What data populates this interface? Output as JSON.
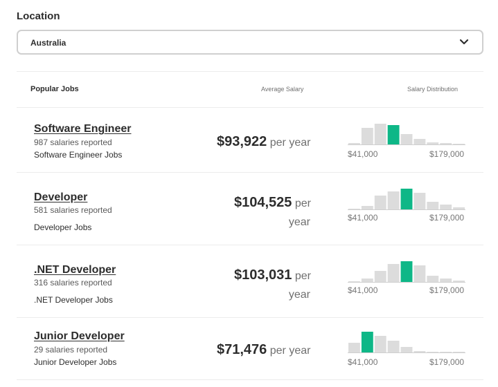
{
  "location": {
    "label": "Location",
    "selected": "Australia",
    "chevron_icon": "chevron-down-icon"
  },
  "table": {
    "headers": {
      "jobs": "Popular Jobs",
      "average": "Average Salary",
      "distribution": "Salary Distribution"
    },
    "rows": [
      {
        "title": "Software Engineer",
        "count": "987 salaries reported",
        "link": "Software Engineer Jobs",
        "salary": "$93,922",
        "unit": "per year",
        "unit_word1": "per",
        "unit_word2": "year",
        "dist_min": "$41,000",
        "dist_max": "$179,000",
        "bars": [
          2,
          24,
          30,
          28,
          15,
          8,
          3,
          2,
          1
        ],
        "highlight": 3
      },
      {
        "title": "Developer",
        "count": "581 salaries reported",
        "link": "Developer Jobs",
        "salary": "$104,525",
        "unit": "per year",
        "unit_word1": "per",
        "unit_word2": "year",
        "dist_min": "$41,000",
        "dist_max": "$179,000",
        "bars": [
          1,
          5,
          20,
          26,
          30,
          24,
          11,
          7,
          3
        ],
        "highlight": 4
      },
      {
        "title": ".NET Developer",
        "count": "316 salaries reported",
        "link": ".NET Developer Jobs",
        "salary": "$103,031",
        "unit": "per year",
        "unit_word1": "per",
        "unit_word2": "year",
        "dist_min": "$41,000",
        "dist_max": "$179,000",
        "bars": [
          1,
          5,
          16,
          26,
          30,
          24,
          9,
          5,
          2
        ],
        "highlight": 4
      },
      {
        "title": "Junior Developer",
        "count": "29 salaries reported",
        "link": "Junior Developer Jobs",
        "salary": "$71,476",
        "unit": "per year",
        "unit_word1": "per",
        "unit_word2": "year",
        "dist_min": "$41,000",
        "dist_max": "$179,000",
        "bars": [
          14,
          30,
          24,
          17,
          8,
          2,
          1,
          0,
          0
        ],
        "highlight": 1
      }
    ]
  },
  "colors": {
    "accent": "#0eb787",
    "bar": "#dcdcdc"
  }
}
